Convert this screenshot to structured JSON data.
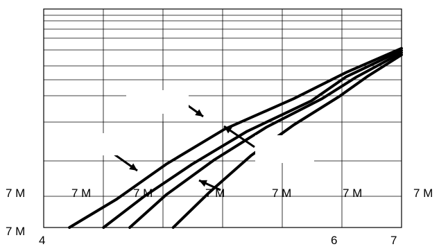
{
  "chart_data": {
    "type": "line",
    "title": "",
    "xlabel": "",
    "ylabel": "",
    "xscale": "log",
    "grid": true,
    "x_tick_labels": [
      "4",
      "6",
      "7"
    ],
    "y_tick_labels": [
      "7 M",
      "7 M"
    ],
    "in_plot_labels": [
      "7 M",
      "7 M",
      "7 M",
      "7 M",
      "7 M",
      "7 M"
    ],
    "series": [
      {
        "x": [
          1.18,
          1.6,
          2.2,
          3.2,
          5.0,
          7.0,
          10.0
        ],
        "y": [
          0.0,
          0.13,
          0.29,
          0.45,
          0.59,
          0.71,
          0.82
        ]
      },
      {
        "x": [
          1.47,
          1.9,
          2.6,
          3.7,
          5.6,
          7.0,
          10.0
        ],
        "y": [
          0.0,
          0.14,
          0.29,
          0.44,
          0.58,
          0.69,
          0.81
        ]
      },
      {
        "x": [
          1.74,
          2.2,
          3.0,
          4.2,
          6.0,
          7.5,
          10.0
        ],
        "y": [
          0.0,
          0.15,
          0.31,
          0.46,
          0.59,
          0.69,
          0.8
        ]
      },
      {
        "x": [
          2.3,
          2.9,
          3.8,
          5.0,
          6.7,
          8.0,
          10.0
        ],
        "y": [
          0.0,
          0.16,
          0.33,
          0.47,
          0.6,
          0.69,
          0.79
        ]
      }
    ]
  }
}
